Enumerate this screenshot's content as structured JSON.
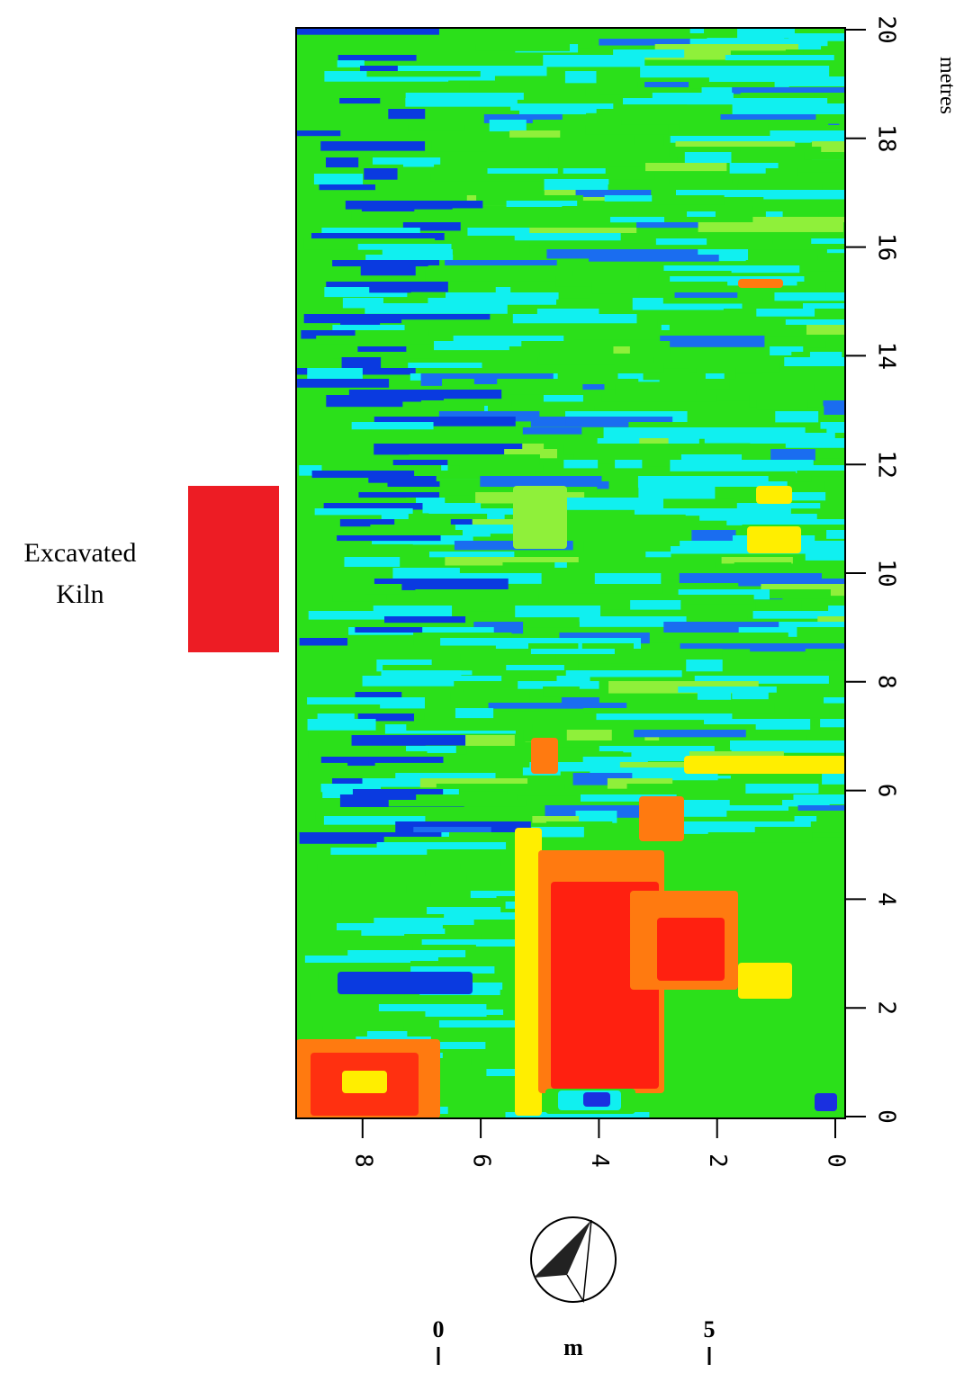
{
  "annotation": {
    "lines": [
      "Excavated",
      "Kiln"
    ]
  },
  "y_axis": {
    "label": "metres",
    "ticks": [
      0,
      2,
      4,
      6,
      8,
      10,
      12,
      14,
      16,
      18,
      20
    ]
  },
  "x_axis": {
    "ticks": [
      0,
      2,
      4,
      6,
      8
    ]
  },
  "scale_bar": {
    "start": "0",
    "unit": "m",
    "end": "5"
  }
}
